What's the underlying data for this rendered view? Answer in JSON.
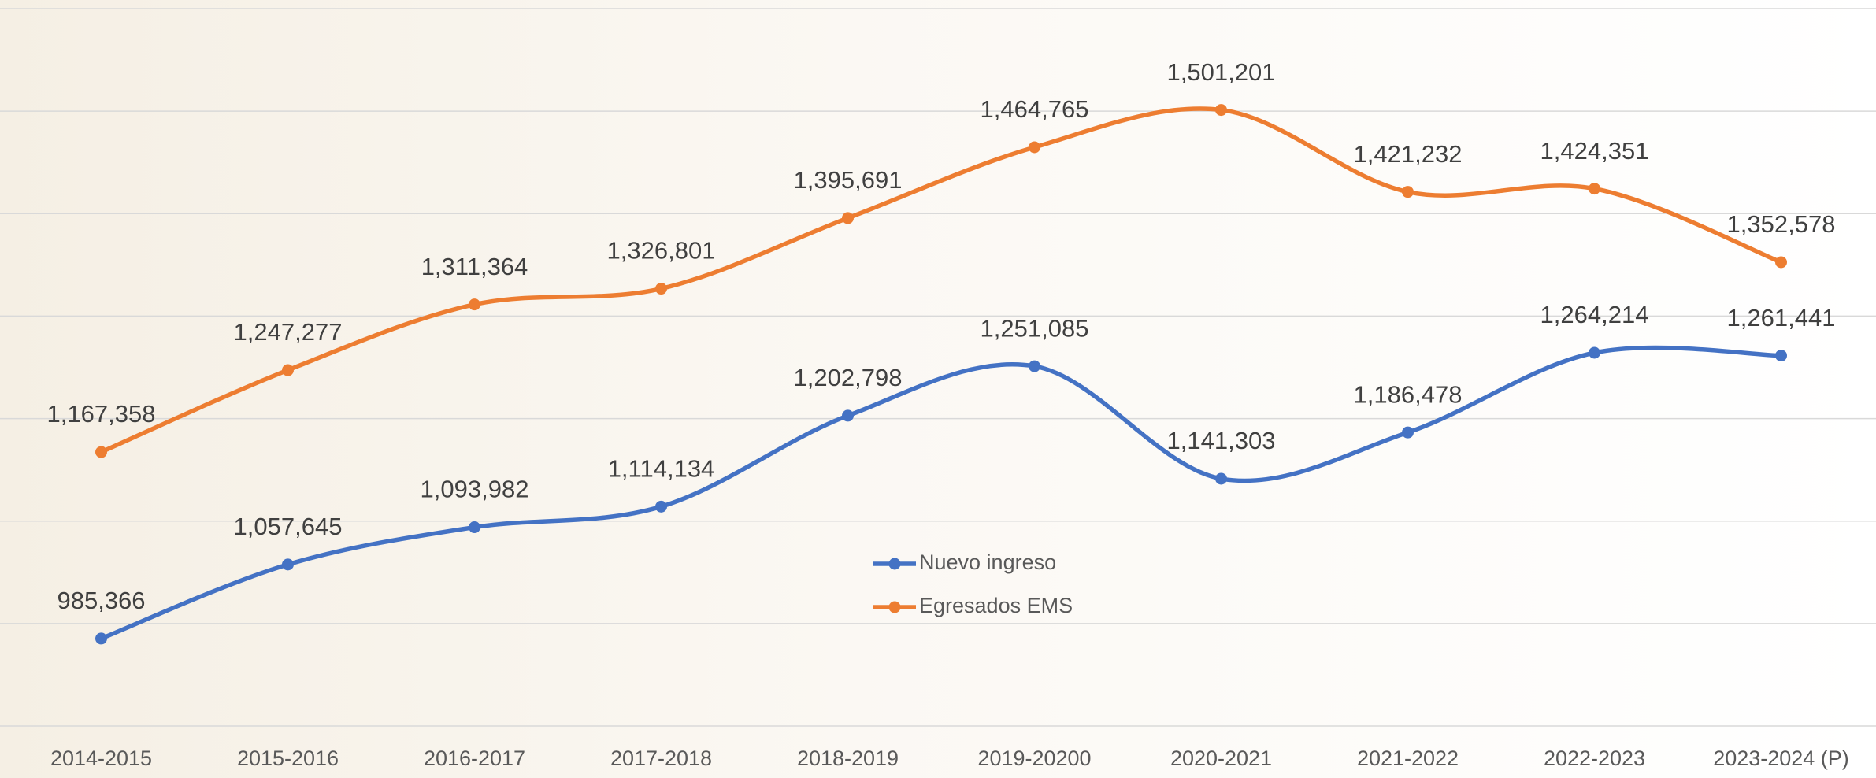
{
  "chart_data": {
    "type": "line",
    "categories": [
      "2014-2015",
      "2015-2016",
      "2016-2017",
      "2017-2018",
      "2018-2019",
      "2019-20200",
      "2020-2021",
      "2021-2022",
      "2022-2023",
      "2023-2024 (P)"
    ],
    "series": [
      {
        "name": "Nuevo ingreso",
        "color": "#4472c4",
        "values": [
          985366,
          1057645,
          1093982,
          1114134,
          1202798,
          1251085,
          1141303,
          1186478,
          1264214,
          1261441
        ],
        "value_labels": [
          "985,366",
          "1,057,645",
          "1,093,982",
          "1,114,134",
          "1,202,798",
          "1,251,085",
          "1,141,303",
          "1,186,478",
          "1,264,214",
          "1,261,441"
        ]
      },
      {
        "name": "Egresados EMS",
        "color": "#ed7d31",
        "values": [
          1167358,
          1247277,
          1311364,
          1326801,
          1395691,
          1464765,
          1501201,
          1421232,
          1424351,
          1352578
        ],
        "value_labels": [
          "1,167,358",
          "1,247,277",
          "1,311,364",
          "1,326,801",
          "1,395,691",
          "1,464,765",
          "1,501,201",
          "1,421,232",
          "1,424,351",
          "1,352,578"
        ]
      }
    ],
    "ylim": [
      900000,
      1600000
    ],
    "yticks": [
      900000,
      1000000,
      1100000,
      1200000,
      1300000,
      1400000,
      1500000,
      1600000
    ],
    "grid": true,
    "smooth": true,
    "legend": "center"
  }
}
